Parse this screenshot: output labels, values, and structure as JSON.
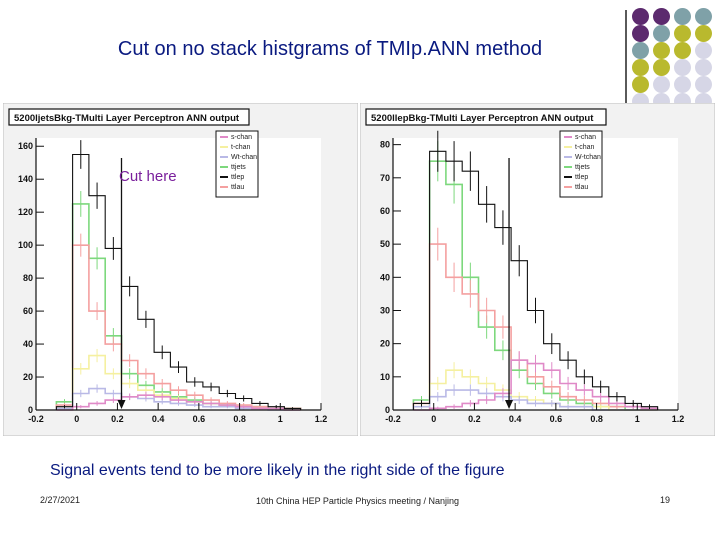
{
  "slide": {
    "title": "Cut on no stack histgrams of TMIp.ANN method",
    "cut_label": "Cut here",
    "caption": "Signal events tend to be more likely in the right side of the figure",
    "footer_date": "2/27/2021",
    "footer_conf": "10th China HEP Particle Physics meeting / Nanjing",
    "page_number": "19"
  },
  "decoration": {
    "dot_colors": [
      [
        "#5c2a6e",
        "#5c2a6e",
        "#7fa1a8",
        "#7fa1a8"
      ],
      [
        "#5c2a6e",
        "#7fa1a8",
        "#b9b92e",
        "#b9b92e"
      ],
      [
        "#7fa1a8",
        "#b9b92e",
        "#b9b92e",
        "#d6d6e6"
      ],
      [
        "#b9b92e",
        "#b9b92e",
        "#d6d6e6",
        "#d6d6e6"
      ],
      [
        "#b9b92e",
        "#d6d6e6",
        "#d6d6e6",
        "#d6d6e6"
      ],
      [
        "#d6d6e6",
        "#d6d6e6",
        "#d6d6e6",
        "#d6d6e6"
      ]
    ]
  },
  "chart_data": [
    {
      "type": "histogram",
      "title": "5200ljetsBkg-TMulti Layer Perceptron ANN output",
      "xlim": [
        -0.2,
        1.2
      ],
      "ylim": [
        0,
        165
      ],
      "x_ticks": [
        -0.2,
        0,
        0.2,
        0.4,
        0.6,
        0.8,
        1,
        1.2
      ],
      "x_tick_labels": [
        "-0.2",
        "0",
        "0.2",
        "0.4",
        "0.6",
        "0.8",
        "1",
        "1.2"
      ],
      "y_ticks": [
        0,
        20,
        40,
        60,
        80,
        100,
        120,
        140,
        160
      ],
      "y_tick_labels": [
        "0",
        "20",
        "40",
        "60",
        "80",
        "100",
        "120",
        "140",
        "160"
      ],
      "cut_x": 0.22,
      "bin_edges": [
        -0.1,
        -0.02,
        0.06,
        0.14,
        0.22,
        0.3,
        0.38,
        0.46,
        0.54,
        0.62,
        0.7,
        0.78,
        0.86,
        0.94,
        1.02,
        1.1
      ],
      "legend": [
        "s-chan",
        "t-chan",
        "Wt-chan",
        "ttjets",
        "ttlep",
        "ttlau"
      ],
      "legend_colors": [
        "#e08ac8",
        "#f5f0a0",
        "#b9b9e6",
        "#7dd87d",
        "#111111",
        "#f4a0a0"
      ],
      "series": [
        {
          "name": "ttjets",
          "color": "#7dd87d",
          "values": [
            5,
            125,
            92,
            45,
            22,
            15,
            11,
            8,
            6,
            4,
            3,
            2,
            2,
            1,
            1
          ]
        },
        {
          "name": "ttlep",
          "color": "#111111",
          "values": [
            2,
            155,
            130,
            98,
            75,
            55,
            35,
            26,
            17,
            14,
            10,
            7,
            4,
            2,
            1
          ]
        },
        {
          "name": "ttlau",
          "color": "#f4a0a0",
          "values": [
            3,
            100,
            60,
            40,
            30,
            22,
            16,
            12,
            9,
            6,
            4,
            3,
            2,
            1,
            1
          ]
        },
        {
          "name": "t-chan",
          "color": "#f5f0a0",
          "values": [
            1,
            25,
            33,
            22,
            16,
            12,
            9,
            7,
            5,
            4,
            3,
            2,
            1,
            1,
            0
          ]
        },
        {
          "name": "Wt-chan",
          "color": "#b9b9e6",
          "values": [
            1,
            10,
            13,
            10,
            8,
            7,
            5,
            4,
            3,
            2,
            2,
            1,
            1,
            0,
            0
          ]
        },
        {
          "name": "s-chan",
          "color": "#e08ac8",
          "values": [
            0,
            2,
            4,
            6,
            8,
            9,
            8,
            6,
            5,
            4,
            3,
            2,
            1,
            1,
            0
          ]
        }
      ]
    },
    {
      "type": "histogram",
      "title": "5200llepBkg-TMulti Layer Perceptron ANN output",
      "xlim": [
        -0.2,
        1.2
      ],
      "ylim": [
        0,
        82
      ],
      "x_ticks": [
        -0.2,
        0,
        0.2,
        0.4,
        0.6,
        0.8,
        1,
        1.2
      ],
      "x_tick_labels": [
        "-0.2",
        "0",
        "0.2",
        "0.4",
        "0.6",
        "0.8",
        "1",
        "1.2"
      ],
      "y_ticks": [
        0,
        10,
        20,
        30,
        40,
        50,
        60,
        70,
        80
      ],
      "y_tick_labels": [
        "0",
        "10",
        "20",
        "30",
        "40",
        "50",
        "60",
        "70",
        "80"
      ],
      "cut_x": 0.37,
      "bin_edges": [
        -0.1,
        -0.02,
        0.06,
        0.14,
        0.22,
        0.3,
        0.38,
        0.46,
        0.54,
        0.62,
        0.7,
        0.78,
        0.86,
        0.94,
        1.02,
        1.1
      ],
      "legend": [
        "s-chan",
        "t-chan",
        "W-tchan",
        "ttjets",
        "ttlep",
        "ttlau"
      ],
      "legend_colors": [
        "#e08ac8",
        "#f5f0a0",
        "#b9b9e6",
        "#7dd87d",
        "#111111",
        "#f4a0a0"
      ],
      "series": [
        {
          "name": "ttlep",
          "color": "#111111",
          "values": [
            2,
            78,
            75,
            72,
            62,
            55,
            45,
            30,
            20,
            15,
            10,
            7,
            4,
            2,
            1
          ]
        },
        {
          "name": "ttjets",
          "color": "#7dd87d",
          "values": [
            3,
            75,
            68,
            40,
            25,
            18,
            12,
            8,
            5,
            3,
            2,
            1,
            1,
            0,
            0
          ]
        },
        {
          "name": "ttlau",
          "color": "#f4a0a0",
          "values": [
            2,
            50,
            40,
            35,
            30,
            25,
            15,
            10,
            7,
            4,
            3,
            2,
            1,
            1,
            0
          ]
        },
        {
          "name": "t-chan",
          "color": "#f5f0a0",
          "values": [
            1,
            8,
            12,
            10,
            8,
            6,
            4,
            3,
            2,
            1,
            1,
            1,
            0,
            0,
            0
          ]
        },
        {
          "name": "W-tchan",
          "color": "#b9b9e6",
          "values": [
            1,
            4,
            6,
            6,
            5,
            4,
            3,
            2,
            2,
            1,
            1,
            0,
            0,
            0,
            0
          ]
        },
        {
          "name": "s-chan",
          "color": "#e08ac8",
          "values": [
            0,
            0.5,
            1,
            2,
            3,
            5,
            15,
            14,
            12,
            8,
            6,
            4,
            2,
            1,
            0.5
          ]
        }
      ]
    }
  ]
}
